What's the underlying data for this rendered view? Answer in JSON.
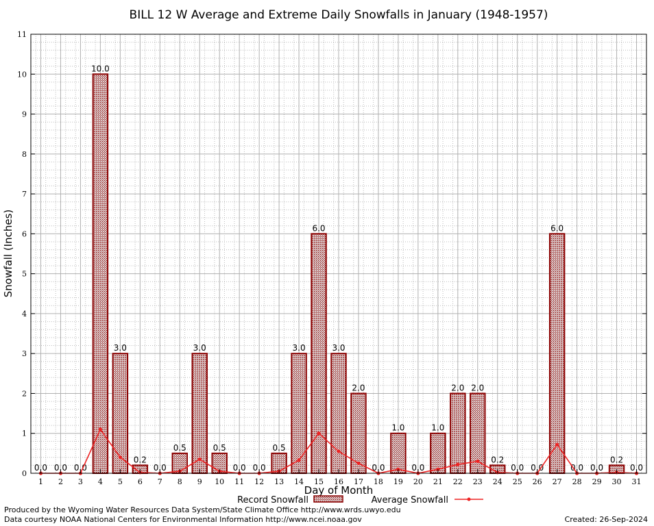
{
  "chart_data": {
    "type": "bar",
    "title": "BILL 12 W Average and Extreme Daily Snowfalls in January (1948-1957)",
    "xlabel": "Day of Month",
    "ylabel": "Snowfall (Inches)",
    "ylim": [
      0,
      11
    ],
    "yticks": [
      "0",
      "1",
      "2",
      "3",
      "4",
      "5",
      "6",
      "7",
      "8",
      "9",
      "10",
      "11"
    ],
    "grid": true,
    "legend_position": "bottom",
    "categories": [
      "1",
      "2",
      "3",
      "4",
      "5",
      "6",
      "7",
      "8",
      "9",
      "10",
      "11",
      "12",
      "13",
      "14",
      "15",
      "16",
      "17",
      "18",
      "19",
      "20",
      "21",
      "22",
      "23",
      "24",
      "25",
      "26",
      "27",
      "28",
      "29",
      "30",
      "31"
    ],
    "series": [
      {
        "name": "Record Snowfall",
        "type": "bar",
        "color": "#8b0000",
        "values": [
          0,
          0,
          0,
          10,
          3,
          0.2,
          0,
          0.5,
          3,
          0.5,
          0,
          0,
          0.5,
          3,
          6,
          3,
          2,
          0,
          1,
          0,
          1,
          2,
          2,
          0.2,
          0,
          0,
          6,
          0,
          0,
          0.2,
          0
        ],
        "labels": [
          "0.0",
          "0.0",
          "0.0",
          "10.0",
          "3.0",
          "0.2",
          "0.0",
          "0.5",
          "3.0",
          "0.5",
          "0.0",
          "0.0",
          "0.5",
          "3.0",
          "6.0",
          "3.0",
          "2.0",
          "0.0",
          "1.0",
          "0.0",
          "1.0",
          "2.0",
          "2.0",
          "0.2",
          "0.0",
          "0.0",
          "6.0",
          "0.0",
          "0.0",
          "0.2",
          "0.0"
        ]
      },
      {
        "name": "Average Snowfall",
        "type": "line",
        "color": "#ee2222",
        "values": [
          0,
          0,
          0,
          1.1,
          0.4,
          0.02,
          0,
          0.05,
          0.35,
          0.05,
          0,
          0,
          0.05,
          0.33,
          1.0,
          0.55,
          0.25,
          0,
          0.1,
          0,
          0.1,
          0.22,
          0.3,
          0.02,
          0,
          0,
          0.72,
          0,
          0,
          0.02,
          0
        ]
      }
    ]
  },
  "footer": {
    "line1": "Produced by the Wyoming Water Resources Data System/State Climate Office http://www.wrds.uwyo.edu",
    "line2": "Data courtesy NOAA National Centers for Environmental Information http://www.ncei.noaa.gov",
    "created": "Created: 26-Sep-2024"
  }
}
